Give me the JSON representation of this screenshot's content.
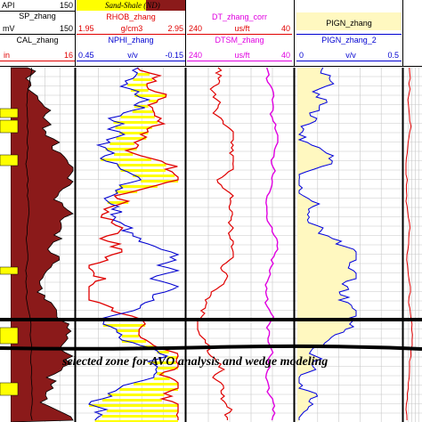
{
  "tracks": {
    "gr": {
      "curve_name": "API",
      "scale_max": "150",
      "sp_name": "SP_zhang",
      "sp_unit": "mV",
      "sp_max": "150",
      "cal_name": "CAL_zhang",
      "cal_unit": "in",
      "cal_max": "16"
    },
    "density": {
      "banner": "Sand-Shale (ND)",
      "rhob_name": "RHOB_zhang",
      "rhob_min": "1.95",
      "rhob_unit": "g/cm3",
      "rhob_max": "2.95",
      "nphi_name": "NPHI_zhang",
      "nphi_min": "0.45",
      "nphi_unit": "v/v",
      "nphi_max": "-0.15"
    },
    "sonic": {
      "dt_name": "DT_zhang_corr",
      "dt_min": "240",
      "dt_unit": "us/ft",
      "dt_max": "40",
      "dtsm_name": "DTSM_zhang",
      "dtsm_min": "240",
      "dtsm_unit": "us/ft",
      "dtsm_max": "40"
    },
    "pign": {
      "name": "PIGN_zhang",
      "name2": "PIGN_zhang_2",
      "min2": "0",
      "unit2": "v/v",
      "max2": "0.5"
    }
  },
  "caption": "selected zone for AVO analysis and wedge modeling",
  "colors": {
    "fill_shale": "#8b1a1a",
    "fill_sand": "#ffff00",
    "rhob": "#e00000",
    "nphi": "#0000d0",
    "dt": "#e00000",
    "dtsm": "#e000e0",
    "pign": "#0000e0",
    "pign_fill": "#fff8c0",
    "grid": "#c8c8c8"
  }
}
